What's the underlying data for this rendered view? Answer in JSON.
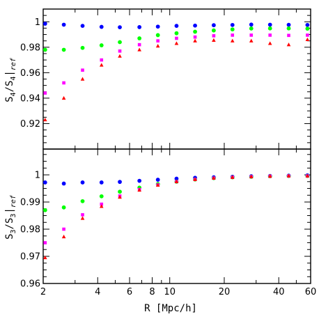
{
  "chart_data": [
    {
      "type": "scatter",
      "ylabel": "S4/S4|ref",
      "ylabel_parts": {
        "main": "S",
        "sub": "4",
        "slash": "/S",
        "sub2": "4",
        "bar": "|",
        "refsub": "ref"
      },
      "xscale": "log",
      "xlim": [
        2,
        60
      ],
      "ylim": [
        0.9,
        1.01
      ],
      "yticks": [
        0.92,
        0.94,
        0.96,
        0.98,
        1
      ],
      "ytick_labels": [
        "0.92",
        "0.94",
        "0.96",
        "0.98",
        "1"
      ],
      "x": [
        2.05,
        2.6,
        3.3,
        4.2,
        5.3,
        6.8,
        8.6,
        10.9,
        13.8,
        17.5,
        22.2,
        28.2,
        35.8,
        45.4,
        57.6
      ],
      "series": [
        {
          "color": "#0000ff",
          "marker": "circle",
          "values": [
            0.9985,
            0.9977,
            0.9968,
            0.996,
            0.9957,
            0.9958,
            0.9962,
            0.9968,
            0.997,
            0.9973,
            0.9975,
            0.9978,
            0.9977,
            0.9976,
            0.9975
          ]
        },
        {
          "color": "#00ff00",
          "marker": "circle",
          "values": [
            0.978,
            0.978,
            0.9795,
            0.9815,
            0.984,
            0.987,
            0.9895,
            0.991,
            0.9922,
            0.9932,
            0.994,
            0.9947,
            0.9948,
            0.9948,
            0.9946
          ]
        },
        {
          "color": "#ff00ff",
          "marker": "square",
          "values": [
            0.944,
            0.952,
            0.962,
            0.97,
            0.977,
            0.982,
            0.985,
            0.987,
            0.988,
            0.989,
            0.9895,
            0.9895,
            0.9895,
            0.9893,
            0.9895
          ]
        },
        {
          "color": "#ff0000",
          "marker": "triangle",
          "values": [
            0.923,
            0.94,
            0.955,
            0.966,
            0.973,
            0.978,
            0.981,
            0.983,
            0.985,
            0.9855,
            0.985,
            0.985,
            0.983,
            0.982,
            0.986
          ]
        }
      ]
    },
    {
      "type": "scatter",
      "xlabel": "R [Mpc/h]",
      "ylabel": "S3/S3|ref",
      "ylabel_parts": {
        "main": "S",
        "sub": "3",
        "slash": "/S",
        "sub2": "3",
        "bar": "|",
        "refsub": "ref"
      },
      "xscale": "log",
      "xlim": [
        2,
        60
      ],
      "ylim": [
        0.96,
        1.0095
      ],
      "xticks": [
        2,
        4,
        6,
        8,
        10,
        20,
        40,
        60
      ],
      "xtick_labels": [
        "2",
        "4",
        "6",
        "8",
        "10",
        "20",
        "40",
        "60"
      ],
      "yticks": [
        0.96,
        0.97,
        0.98,
        0.99,
        1
      ],
      "ytick_labels": [
        "0.96",
        "0.97",
        "0.98",
        "0.99",
        "1"
      ],
      "x": [
        2.05,
        2.6,
        3.3,
        4.2,
        5.3,
        6.8,
        8.6,
        10.9,
        13.8,
        17.5,
        22.2,
        28.2,
        35.8,
        45.4,
        57.6
      ],
      "series": [
        {
          "color": "#0000ff",
          "marker": "circle",
          "values": [
            0.9972,
            0.9968,
            0.9972,
            0.9972,
            0.9974,
            0.9978,
            0.9982,
            0.9986,
            0.9989,
            0.9991,
            0.9993,
            0.9995,
            0.9996,
            0.9997,
            0.9998
          ]
        },
        {
          "color": "#00ff00",
          "marker": "circle",
          "values": [
            0.987,
            0.988,
            0.9903,
            0.9921,
            0.9938,
            0.9953,
            0.9966,
            0.9975,
            0.9983,
            0.9988,
            0.9991,
            0.9993,
            0.9995,
            0.9996,
            0.9996
          ]
        },
        {
          "color": "#ff00ff",
          "marker": "square",
          "values": [
            0.975,
            0.98,
            0.9853,
            0.9892,
            0.9922,
            0.9946,
            0.9963,
            0.9975,
            0.9983,
            0.9988,
            0.9991,
            0.9993,
            0.9995,
            0.9996,
            0.9996
          ]
        },
        {
          "color": "#ff0000",
          "marker": "triangle",
          "values": [
            0.9695,
            0.9772,
            0.984,
            0.9884,
            0.9918,
            0.9944,
            0.9962,
            0.9975,
            0.9983,
            0.9988,
            0.9991,
            0.9993,
            0.9995,
            0.9996,
            0.9996
          ]
        }
      ]
    }
  ]
}
